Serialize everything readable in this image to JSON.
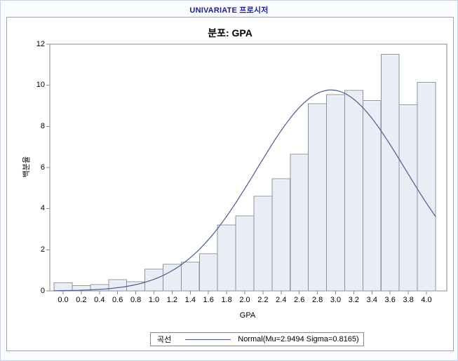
{
  "header": {
    "title": "UNIVARIATE 프로시저"
  },
  "chart_data": {
    "type": "bar",
    "subtype": "histogram-with-normal-curve",
    "title": "분포: GPA",
    "xlabel": "GPA",
    "ylabel": "백분율",
    "categories": [
      "0.0",
      "0.2",
      "0.4",
      "0.6",
      "0.8",
      "1.0",
      "1.2",
      "1.4",
      "1.6",
      "1.8",
      "2.0",
      "2.2",
      "2.4",
      "2.6",
      "2.8",
      "3.0",
      "3.2",
      "3.4",
      "3.6",
      "3.8",
      "4.0"
    ],
    "values": [
      0.4,
      0.25,
      0.3,
      0.55,
      0.45,
      1.05,
      1.3,
      1.4,
      1.8,
      3.2,
      3.65,
      4.6,
      5.45,
      6.65,
      9.1,
      9.55,
      9.75,
      9.25,
      11.5,
      9.05,
      10.15
    ],
    "ylim": [
      0,
      12
    ],
    "yticks": [
      0,
      2,
      4,
      6,
      8,
      10,
      12
    ],
    "grid": false,
    "curve": {
      "kind": "normal",
      "mu": 2.9494,
      "sigma": 0.8165,
      "percent_bin_scale": 20,
      "x_start": -0.1,
      "x_end": 4.1
    },
    "legend": {
      "label": "곡선",
      "entry": "Normal(Mu=2.9494 Sigma=0.8165)",
      "position": "bottom-center"
    },
    "colors": {
      "bar_fill": "#e9edf5",
      "bar_stroke": "#8e939b",
      "curve": "#4a5a96",
      "axis": "#8a8a8a",
      "header_title": "#1a1f96"
    }
  }
}
